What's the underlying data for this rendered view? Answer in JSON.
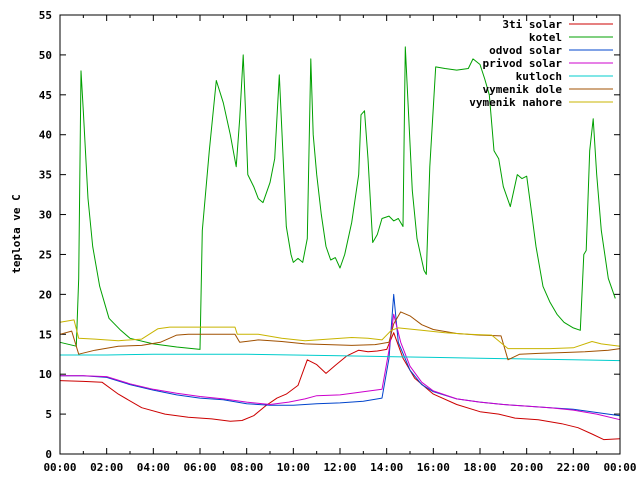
{
  "chart_data": {
    "type": "line",
    "title": "",
    "xlabel": "",
    "ylabel": "teplota ve C",
    "xlim": [
      0,
      24
    ],
    "ylim": [
      0,
      55
    ],
    "grid": false,
    "legend_position": "top-right",
    "x_ticks": [
      "00:00",
      "02:00",
      "04:00",
      "06:00",
      "08:00",
      "10:00",
      "12:00",
      "14:00",
      "16:00",
      "18:00",
      "20:00",
      "22:00",
      "00:00"
    ],
    "y_ticks": [
      "0",
      "5",
      "10",
      "15",
      "20",
      "25",
      "30",
      "35",
      "40",
      "45",
      "50",
      "55"
    ],
    "series": [
      {
        "name": "3ti solar",
        "color": "#cc0000",
        "points": [
          [
            0,
            9.2
          ],
          [
            1,
            9.1
          ],
          [
            1.8,
            9
          ],
          [
            2.5,
            7.5
          ],
          [
            3.5,
            5.8
          ],
          [
            4.5,
            5
          ],
          [
            5.5,
            4.6
          ],
          [
            6.5,
            4.4
          ],
          [
            7.3,
            4.1
          ],
          [
            7.8,
            4.2
          ],
          [
            8.3,
            4.8
          ],
          [
            8.8,
            6
          ],
          [
            9.3,
            7
          ],
          [
            9.7,
            7.5
          ],
          [
            10.2,
            8.6
          ],
          [
            10.6,
            11.8
          ],
          [
            11,
            11.2
          ],
          [
            11.4,
            10.1
          ],
          [
            11.8,
            11.1
          ],
          [
            12.3,
            12.3
          ],
          [
            12.8,
            13
          ],
          [
            13.2,
            12.8
          ],
          [
            13.6,
            12.9
          ],
          [
            14,
            13.1
          ],
          [
            14.3,
            15.2
          ],
          [
            14.7,
            12
          ],
          [
            15.2,
            9.5
          ],
          [
            16,
            7.5
          ],
          [
            17,
            6.2
          ],
          [
            18,
            5.3
          ],
          [
            18.8,
            5
          ],
          [
            19.5,
            4.5
          ],
          [
            20.5,
            4.3
          ],
          [
            21.5,
            3.8
          ],
          [
            22.2,
            3.3
          ],
          [
            22.8,
            2.5
          ],
          [
            23.3,
            1.8
          ],
          [
            24,
            1.9
          ]
        ]
      },
      {
        "name": "kotel",
        "color": "#00a000",
        "points": [
          [
            0,
            14
          ],
          [
            0.7,
            13.5
          ],
          [
            0.8,
            22
          ],
          [
            0.9,
            48
          ],
          [
            1.0,
            43
          ],
          [
            1.2,
            32
          ],
          [
            1.4,
            26
          ],
          [
            1.7,
            21
          ],
          [
            2.1,
            17
          ],
          [
            2.6,
            15.5
          ],
          [
            3,
            14.5
          ],
          [
            4,
            13.8
          ],
          [
            5,
            13.4
          ],
          [
            6,
            13.1
          ],
          [
            6.1,
            28
          ],
          [
            6.4,
            38
          ],
          [
            6.7,
            46.8
          ],
          [
            7,
            44
          ],
          [
            7.3,
            40
          ],
          [
            7.55,
            36
          ],
          [
            7.7,
            42
          ],
          [
            7.85,
            50
          ],
          [
            7.95,
            43
          ],
          [
            8.05,
            35
          ],
          [
            8.3,
            33.5
          ],
          [
            8.5,
            32
          ],
          [
            8.7,
            31.5
          ],
          [
            9,
            34
          ],
          [
            9.2,
            37
          ],
          [
            9.4,
            47.5
          ],
          [
            9.55,
            38
          ],
          [
            9.7,
            28.5
          ],
          [
            9.9,
            25
          ],
          [
            10,
            24
          ],
          [
            10.2,
            24.5
          ],
          [
            10.4,
            24
          ],
          [
            10.6,
            27
          ],
          [
            10.75,
            49.5
          ],
          [
            10.85,
            40
          ],
          [
            11,
            35
          ],
          [
            11.2,
            30
          ],
          [
            11.4,
            26
          ],
          [
            11.6,
            24.3
          ],
          [
            11.8,
            24.6
          ],
          [
            12,
            23.3
          ],
          [
            12.2,
            25
          ],
          [
            12.5,
            29
          ],
          [
            12.8,
            35
          ],
          [
            12.9,
            42.5
          ],
          [
            13.05,
            43
          ],
          [
            13.2,
            37
          ],
          [
            13.4,
            26.5
          ],
          [
            13.6,
            27.5
          ],
          [
            13.8,
            29.5
          ],
          [
            14.1,
            29.8
          ],
          [
            14.3,
            29.2
          ],
          [
            14.5,
            29.5
          ],
          [
            14.7,
            28.5
          ],
          [
            14.8,
            51
          ],
          [
            14.95,
            42
          ],
          [
            15.1,
            33
          ],
          [
            15.3,
            27
          ],
          [
            15.6,
            23
          ],
          [
            15.7,
            22.5
          ],
          [
            15.85,
            36
          ],
          [
            16.1,
            48.5
          ],
          [
            16.5,
            48.3
          ],
          [
            17,
            48.1
          ],
          [
            17.5,
            48.3
          ],
          [
            17.7,
            49.5
          ],
          [
            18,
            48.8
          ],
          [
            18.2,
            47
          ],
          [
            18.4,
            45
          ],
          [
            18.6,
            38
          ],
          [
            18.8,
            37
          ],
          [
            19,
            33.5
          ],
          [
            19.3,
            31
          ],
          [
            19.6,
            35
          ],
          [
            19.8,
            34.5
          ],
          [
            20,
            34.8
          ],
          [
            20.2,
            30.5
          ],
          [
            20.4,
            26
          ],
          [
            20.7,
            21
          ],
          [
            21,
            19
          ],
          [
            21.3,
            17.5
          ],
          [
            21.6,
            16.5
          ],
          [
            22,
            15.8
          ],
          [
            22.3,
            15.5
          ],
          [
            22.45,
            25
          ],
          [
            22.55,
            25.5
          ],
          [
            22.7,
            38
          ],
          [
            22.85,
            42
          ],
          [
            23,
            35
          ],
          [
            23.2,
            28
          ],
          [
            23.5,
            22
          ],
          [
            23.8,
            19.5
          ]
        ]
      },
      {
        "name": "odvod solar",
        "color": "#0044cc",
        "points": [
          [
            0,
            9.8
          ],
          [
            1,
            9.8
          ],
          [
            2,
            9.6
          ],
          [
            3,
            8.7
          ],
          [
            4,
            8
          ],
          [
            5,
            7.4
          ],
          [
            6,
            7
          ],
          [
            7,
            6.8
          ],
          [
            8,
            6.3
          ],
          [
            9,
            6.1
          ],
          [
            10,
            6.1
          ],
          [
            11,
            6.3
          ],
          [
            12,
            6.4
          ],
          [
            13,
            6.6
          ],
          [
            13.8,
            7
          ],
          [
            14.1,
            12
          ],
          [
            14.3,
            20
          ],
          [
            14.5,
            14
          ],
          [
            15,
            10.5
          ],
          [
            15.5,
            8.7
          ],
          [
            16,
            7.8
          ],
          [
            17,
            6.9
          ],
          [
            18,
            6.5
          ],
          [
            19,
            6.2
          ],
          [
            20,
            6
          ],
          [
            21,
            5.8
          ],
          [
            22,
            5.6
          ],
          [
            23,
            5.2
          ],
          [
            24,
            4.8
          ]
        ]
      },
      {
        "name": "privod solar",
        "color": "#cc00cc",
        "points": [
          [
            0,
            9.8
          ],
          [
            1,
            9.8
          ],
          [
            2,
            9.7
          ],
          [
            3,
            8.8
          ],
          [
            4,
            8.1
          ],
          [
            5,
            7.6
          ],
          [
            6,
            7.2
          ],
          [
            7,
            6.9
          ],
          [
            8,
            6.5
          ],
          [
            9,
            6.2
          ],
          [
            9.8,
            6.5
          ],
          [
            10.5,
            6.9
          ],
          [
            11,
            7.3
          ],
          [
            12,
            7.4
          ],
          [
            13,
            7.8
          ],
          [
            13.8,
            8.1
          ],
          [
            14.1,
            13
          ],
          [
            14.3,
            17.5
          ],
          [
            14.6,
            14
          ],
          [
            15,
            11
          ],
          [
            15.5,
            9
          ],
          [
            16,
            7.9
          ],
          [
            17,
            6.9
          ],
          [
            18,
            6.5
          ],
          [
            19,
            6.2
          ],
          [
            20,
            6
          ],
          [
            21,
            5.8
          ],
          [
            22,
            5.5
          ],
          [
            23,
            5
          ],
          [
            24,
            4.3
          ]
        ]
      },
      {
        "name": "kutloch",
        "color": "#00cccc",
        "points": [
          [
            0,
            12.4
          ],
          [
            2,
            12.4
          ],
          [
            4,
            12.5
          ],
          [
            6,
            12.5
          ],
          [
            8,
            12.5
          ],
          [
            10,
            12.4
          ],
          [
            12,
            12.3
          ],
          [
            14,
            12.2
          ],
          [
            16,
            12.1
          ],
          [
            18,
            12
          ],
          [
            20,
            11.9
          ],
          [
            22,
            11.8
          ],
          [
            24,
            11.7
          ]
        ]
      },
      {
        "name": "vymenik dole",
        "color": "#a05000",
        "points": [
          [
            0,
            15
          ],
          [
            0.5,
            15.4
          ],
          [
            0.8,
            12.5
          ],
          [
            1.5,
            13
          ],
          [
            2.5,
            13.5
          ],
          [
            3.5,
            13.6
          ],
          [
            4.3,
            14
          ],
          [
            5,
            14.9
          ],
          [
            5.5,
            15
          ],
          [
            6.5,
            15
          ],
          [
            7.5,
            15
          ],
          [
            7.7,
            14
          ],
          [
            8.5,
            14.3
          ],
          [
            9.5,
            14.1
          ],
          [
            10.5,
            13.8
          ],
          [
            11.5,
            13.7
          ],
          [
            12.5,
            13.6
          ],
          [
            13.5,
            13.7
          ],
          [
            14.1,
            14
          ],
          [
            14.3,
            16.3
          ],
          [
            14.6,
            17.8
          ],
          [
            15,
            17.3
          ],
          [
            15.5,
            16.2
          ],
          [
            16,
            15.6
          ],
          [
            17,
            15.1
          ],
          [
            18,
            14.9
          ],
          [
            18.9,
            14.8
          ],
          [
            19.2,
            11.8
          ],
          [
            19.7,
            12.5
          ],
          [
            20.5,
            12.6
          ],
          [
            21.5,
            12.7
          ],
          [
            22.5,
            12.8
          ],
          [
            23.5,
            13
          ],
          [
            24,
            13.2
          ]
        ]
      },
      {
        "name": "vymenik nahore",
        "color": "#c8b400",
        "points": [
          [
            0,
            16.5
          ],
          [
            0.6,
            16.8
          ],
          [
            0.8,
            14.5
          ],
          [
            1.5,
            14.4
          ],
          [
            2.5,
            14.2
          ],
          [
            3.5,
            14.4
          ],
          [
            4.2,
            15.7
          ],
          [
            4.7,
            15.9
          ],
          [
            5.5,
            15.9
          ],
          [
            6.5,
            15.9
          ],
          [
            7.5,
            15.9
          ],
          [
            7.6,
            15
          ],
          [
            8.5,
            15
          ],
          [
            9.5,
            14.5
          ],
          [
            10.5,
            14.2
          ],
          [
            11.5,
            14.4
          ],
          [
            12.5,
            14.6
          ],
          [
            13.2,
            14.5
          ],
          [
            13.8,
            14.3
          ],
          [
            14.2,
            15.5
          ],
          [
            14.5,
            15.8
          ],
          [
            15.5,
            15.5
          ],
          [
            16.5,
            15.2
          ],
          [
            17.5,
            15
          ],
          [
            18.5,
            14.9
          ],
          [
            19.2,
            13.2
          ],
          [
            20,
            13.2
          ],
          [
            21,
            13.2
          ],
          [
            22,
            13.3
          ],
          [
            22.8,
            14.1
          ],
          [
            23.2,
            13.8
          ],
          [
            24,
            13.5
          ]
        ]
      }
    ]
  }
}
